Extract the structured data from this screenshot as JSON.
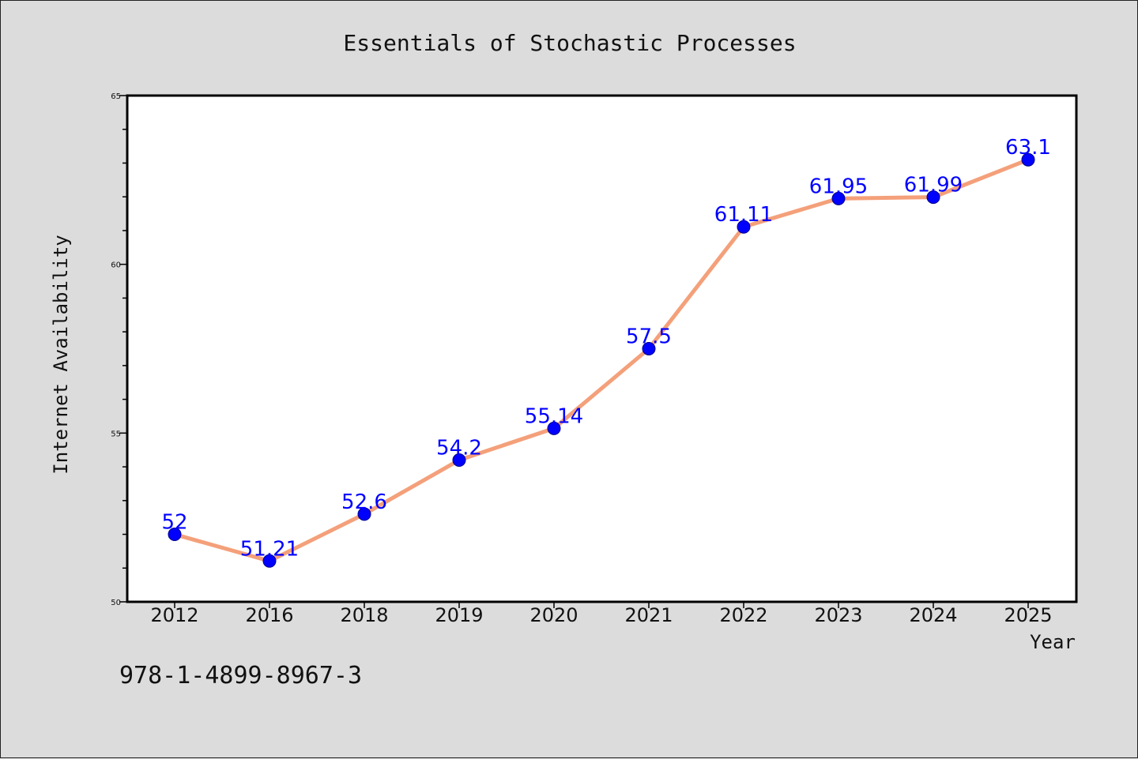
{
  "chart_data": {
    "type": "line",
    "title": "Essentials of Stochastic Processes",
    "xlabel": "Year",
    "ylabel": "Internet Availability",
    "categories": [
      "2012",
      "2016",
      "2018",
      "2019",
      "2020",
      "2021",
      "2022",
      "2023",
      "2024",
      "2025"
    ],
    "series": [
      {
        "values": [
          52,
          51.21,
          52.6,
          54.2,
          55.14,
          57.5,
          61.11,
          61.95,
          61.99,
          63.1
        ],
        "labels": [
          "52",
          "51.21",
          "52.6",
          "54.2",
          "55.14",
          "57.5",
          "61.11",
          "61.95",
          "61.99",
          "63.1"
        ],
        "line_color": "#f4a07a",
        "marker_color": "#0000ff"
      }
    ],
    "ylim": [
      50,
      65
    ],
    "yticks": [
      "50",
      "55",
      "60",
      "65"
    ],
    "grid": false,
    "background": "#dcdcdc",
    "plot_background": "#ffffff"
  },
  "footer": {
    "isbn": "978-1-4899-8967-3"
  }
}
